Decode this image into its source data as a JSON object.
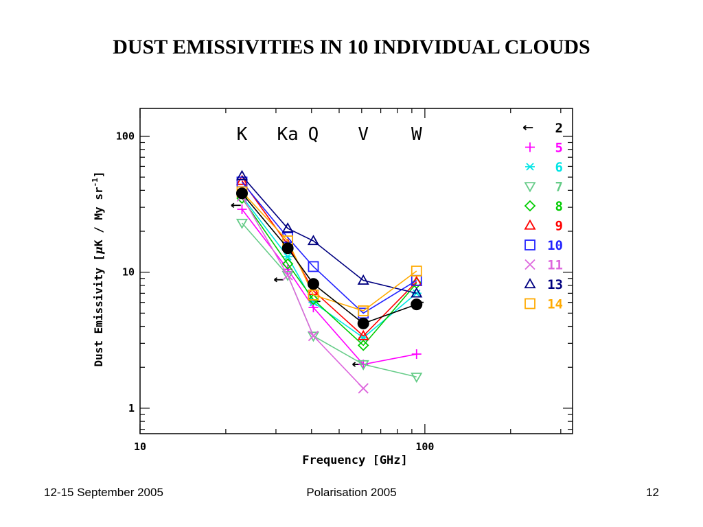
{
  "slide": {
    "title": "DUST EMISSIVITIES IN 10 INDIVIDUAL CLOUDS",
    "footer_left": "12-15 September 2005",
    "footer_center": "Polarisation 2005",
    "footer_right": "12"
  },
  "chart_data": {
    "type": "scatter",
    "xlabel": "Frequency [GHz]",
    "ylabel_parts": [
      "Dust Emissivity [",
      "μ",
      "K / My sr",
      "-1",
      "]"
    ],
    "xscale": "log",
    "yscale": "log",
    "xlim": [
      10,
      330
    ],
    "ylim": [
      0.65,
      160
    ],
    "x_ticks": [
      {
        "value": 10,
        "label": "10"
      },
      {
        "value": 100,
        "label": "100"
      }
    ],
    "y_ticks": [
      {
        "value": 1,
        "label": "1"
      },
      {
        "value": 10,
        "label": "10"
      },
      {
        "value": 100,
        "label": "100"
      }
    ],
    "band_labels": [
      {
        "label": "K",
        "x": 22.8
      },
      {
        "label": "Ka",
        "x": 33
      },
      {
        "label": "Q",
        "x": 40.6
      },
      {
        "label": "V",
        "x": 60.8
      },
      {
        "label": "W",
        "x": 93.5
      }
    ],
    "legend_position": "right",
    "series": [
      {
        "name": "2",
        "color": "#000000",
        "marker": "arrow",
        "x": [
          22.8,
          33,
          40.6,
          60.8,
          93.5
        ],
        "y": [
          31,
          8.8,
          6.1,
          2.1,
          6.0
        ]
      },
      {
        "name": "5",
        "color": "#ff00ff",
        "marker": "plus",
        "x": [
          22.8,
          33,
          40.6,
          60.8,
          93.5
        ],
        "y": [
          29,
          10.5,
          5.5,
          2.1,
          2.5
        ]
      },
      {
        "name": "6",
        "color": "#00e5e5",
        "marker": "asterisk",
        "x": [
          22.8,
          33,
          40.6,
          60.8,
          93.5
        ],
        "y": [
          36,
          13,
          6.0,
          3.3,
          7.0
        ]
      },
      {
        "name": "7",
        "color": "#66cc88",
        "marker": "triangle-down",
        "x": [
          22.8,
          33,
          40.6,
          60.8,
          93.5
        ],
        "y": [
          23,
          9.5,
          3.4,
          2.1,
          1.7
        ]
      },
      {
        "name": "8",
        "color": "#00cc00",
        "marker": "diamond",
        "x": [
          22.8,
          33,
          40.6,
          60.8,
          93.5
        ],
        "y": [
          35,
          11.5,
          6.3,
          2.9,
          8.3
        ]
      },
      {
        "name": "9",
        "color": "#ff0000",
        "marker": "triangle",
        "x": [
          22.8,
          33,
          40.6,
          60.8,
          93.5
        ],
        "y": [
          47,
          16,
          7.3,
          3.4,
          8.5
        ]
      },
      {
        "name": "10",
        "color": "#2222ff",
        "marker": "square",
        "x": [
          22.8,
          33,
          40.6,
          60.8,
          93.5
        ],
        "y": [
          46,
          18,
          11,
          5.0,
          8.7
        ]
      },
      {
        "name": "11",
        "color": "#dd66dd",
        "marker": "x",
        "x": [
          22.8,
          33,
          40.6,
          60.8
        ],
        "y": [
          36,
          9.5,
          3.4,
          1.4
        ]
      },
      {
        "name": "13",
        "color": "#000080",
        "marker": "triangle",
        "x": [
          22.8,
          33,
          40.6,
          60.8,
          93.5
        ],
        "y": [
          51,
          21,
          17,
          8.7,
          7.0
        ]
      },
      {
        "name": "14",
        "color": "#ffaa00",
        "marker": "square",
        "x": [
          22.8,
          33,
          40.6,
          60.8,
          93.5
        ],
        "y": [
          39,
          17,
          6.8,
          5.2,
          10.2
        ]
      },
      {
        "name": "",
        "color": "#000000",
        "marker": "circle",
        "x": [
          22.8,
          33,
          40.6,
          60.8,
          93.5
        ],
        "y": [
          38,
          15,
          8.2,
          4.2,
          5.8
        ]
      }
    ]
  }
}
